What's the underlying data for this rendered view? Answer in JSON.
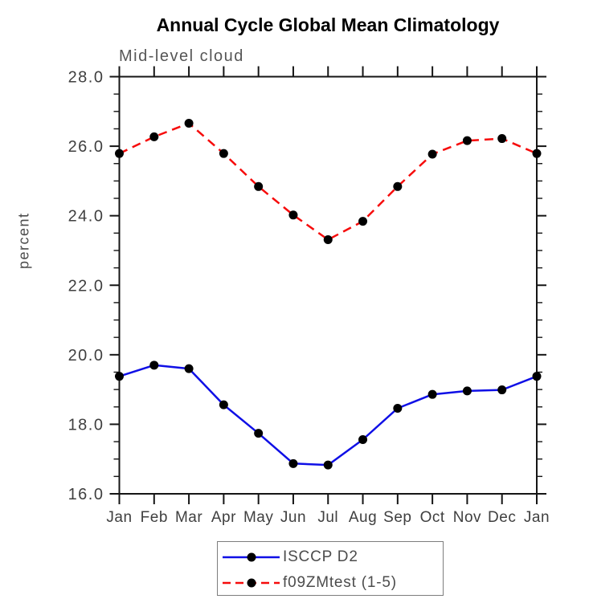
{
  "chart_data": {
    "type": "line",
    "title": "Annual Cycle Global Mean Climatology",
    "subtitle": "Mid-level cloud",
    "ylabel": "percent",
    "x_categories": [
      "Jan",
      "Feb",
      "Mar",
      "Apr",
      "May",
      "Jun",
      "Jul",
      "Aug",
      "Sep",
      "Oct",
      "Nov",
      "Dec",
      "Jan"
    ],
    "ylim": [
      16.0,
      28.0
    ],
    "y_major_step": 2.0,
    "y_minor_step": 0.5,
    "y_tick_labels": [
      "16.0",
      "18.0",
      "20.0",
      "22.0",
      "24.0",
      "26.0",
      "28.0"
    ],
    "grid": "off",
    "legend_position": "bottom-center",
    "series": [
      {
        "name": "ISCCP D2",
        "color": "#0f0fe6",
        "line_style": "solid",
        "marker": "filled-circle",
        "marker_color": "#000000",
        "values": [
          19.38,
          19.7,
          19.6,
          18.56,
          17.74,
          16.87,
          16.83,
          17.56,
          18.46,
          18.86,
          18.96,
          18.99,
          19.38
        ]
      },
      {
        "name": "f09ZMtest (1-5)",
        "color": "#f60b0b",
        "line_style": "dashed",
        "marker": "filled-circle",
        "marker_color": "#000000",
        "values": [
          25.79,
          26.27,
          26.66,
          25.79,
          24.84,
          24.02,
          23.31,
          23.84,
          24.84,
          25.77,
          26.16,
          26.22,
          25.79
        ]
      }
    ],
    "colors": {
      "axis": "#151515",
      "tick_text": "#3f3f3f",
      "title_text": "#000000",
      "subtitle_text": "#565656",
      "background": "#ffffff"
    }
  }
}
